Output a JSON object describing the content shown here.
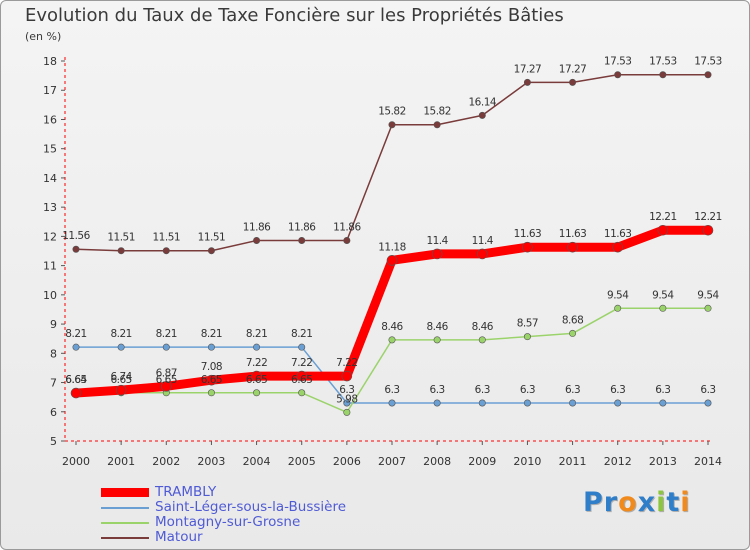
{
  "page": {
    "title": "Evolution du Taux de Taxe Foncière sur les Propriétés Bâties",
    "unit_label": "(en %)"
  },
  "logo": {
    "text": "Proxiti",
    "letters": [
      {
        "ch": "P",
        "color": "#2f7ec9"
      },
      {
        "ch": "r",
        "color": "#2f7ec9"
      },
      {
        "ch": "o",
        "color": "#f08a1c"
      },
      {
        "ch": "x",
        "color": "#2f7ec9"
      },
      {
        "ch": "i",
        "color": "#8cc63f"
      },
      {
        "ch": "t",
        "color": "#2f7ec9"
      },
      {
        "ch": "i",
        "color": "#f08a1c"
      }
    ]
  },
  "chart_data": {
    "type": "line",
    "title": "Evolution du Taux de Taxe Foncière sur les Propriétés Bâties",
    "ylabel": "(en %)",
    "xlabel": "",
    "categories": [
      "2000",
      "2001",
      "2002",
      "2003",
      "2004",
      "2005",
      "2006",
      "2007",
      "2008",
      "2009",
      "2010",
      "2011",
      "2012",
      "2013",
      "2014"
    ],
    "ylim": [
      5,
      18
    ],
    "yticks": [
      "5",
      "6",
      "7",
      "8",
      "9",
      "10",
      "11",
      "12",
      "13",
      "14",
      "15",
      "16",
      "17",
      "18"
    ],
    "grid": false,
    "legend_position": "bottom-left",
    "series": [
      {
        "name": "TRAMBLY",
        "color": "#ff0000",
        "emphasis": true,
        "values": [
          6.64,
          6.74,
          6.87,
          7.08,
          7.22,
          7.22,
          7.22,
          11.18,
          11.4,
          11.4,
          11.63,
          11.63,
          11.63,
          12.21,
          12.21
        ],
        "labels": [
          "6.64",
          "6.74",
          "6.87",
          "7.08",
          "7.22",
          "7.22",
          "7.22",
          "11.18",
          "11.4",
          "11.4",
          "11.63",
          "11.63",
          "11.63",
          "12.21",
          "12.21"
        ]
      },
      {
        "name": "Saint-Léger-sous-la-Bussière",
        "color": "#6a9fd4",
        "values": [
          8.21,
          8.21,
          8.21,
          8.21,
          8.21,
          8.21,
          6.3,
          6.3,
          6.3,
          6.3,
          6.3,
          6.3,
          6.3,
          6.3,
          6.3
        ],
        "labels": [
          "8.21",
          "8.21",
          "8.21",
          "8.21",
          "8.21",
          "8.21",
          "6.3",
          "6.3",
          "6.3",
          "6.3",
          "6.3",
          "6.3",
          "6.3",
          "6.3",
          "6.3"
        ]
      },
      {
        "name": "Montagny-sur-Grosne",
        "color": "#9bd36b",
        "values": [
          6.65,
          6.65,
          6.65,
          6.65,
          6.65,
          6.65,
          5.98,
          8.46,
          8.46,
          8.46,
          8.57,
          8.68,
          9.54,
          9.54,
          9.54
        ],
        "labels": [
          "6.65",
          "6.65",
          "6.65",
          "6.65",
          "6.65",
          "6.65",
          "5.98",
          "8.46",
          "8.46",
          "8.46",
          "8.57",
          "8.68",
          "9.54",
          "9.54",
          "9.54"
        ]
      },
      {
        "name": "Matour",
        "color": "#7a3b3b",
        "values": [
          11.56,
          11.51,
          11.51,
          11.51,
          11.86,
          11.86,
          11.86,
          15.82,
          15.82,
          16.14,
          17.27,
          17.27,
          17.53,
          17.53,
          17.53
        ],
        "labels": [
          "11.56",
          "11.51",
          "11.51",
          "11.51",
          "11.86",
          "11.86",
          "11.86",
          "15.82",
          "15.82",
          "16.14",
          "17.27",
          "17.27",
          "17.53",
          "17.53",
          "17.53"
        ]
      }
    ]
  }
}
